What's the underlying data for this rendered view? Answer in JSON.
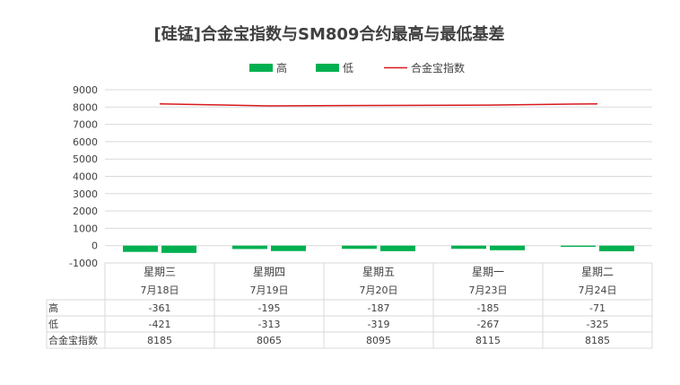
{
  "chart_data": {
    "type": "bar",
    "title": "[硅锰]合金宝指数与SM809合约最高与最低基差",
    "categories": [
      "星期三",
      "星期四",
      "星期五",
      "星期一",
      "星期二"
    ],
    "dates": [
      "7月18日",
      "7月19日",
      "7月20日",
      "7月23日",
      "7月24日"
    ],
    "series": [
      {
        "name": "高",
        "kind": "bar",
        "color": "#00b050",
        "values": [
          -361,
          -195,
          -187,
          -185,
          -71
        ]
      },
      {
        "name": "低",
        "kind": "bar",
        "color": "#00b050",
        "values": [
          -421,
          -313,
          -319,
          -267,
          -325
        ]
      },
      {
        "name": "合金宝指数",
        "kind": "line",
        "color": "#d7191c",
        "values": [
          8185,
          8065,
          8095,
          8115,
          8185
        ]
      }
    ],
    "ylim": [
      -1000,
      9000
    ],
    "yticks": [
      9000,
      8000,
      7000,
      6000,
      5000,
      4000,
      3000,
      2000,
      1000,
      0,
      -1000
    ],
    "grid": true,
    "legend": "top",
    "data_table": true
  }
}
